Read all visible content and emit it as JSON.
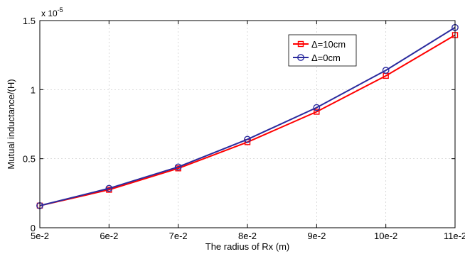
{
  "chart_data": {
    "type": "line",
    "title": "",
    "xlabel": "The radius of Rx (m)",
    "ylabel": "Mutual inductance/(H)",
    "y_multiplier": {
      "base": "x 10",
      "exponent": "-5"
    },
    "x": [
      0.05,
      0.06,
      0.07,
      0.08,
      0.09,
      0.1,
      0.11
    ],
    "x_tick_labels": [
      "5e-2",
      "6e-2",
      "7e-2",
      "8e-2",
      "9e-2",
      "10e-2",
      "11e-2"
    ],
    "y_ticks": [
      0,
      0.5,
      1,
      1.5
    ],
    "y_tick_labels": [
      "0",
      "0.5",
      "1",
      "1.5"
    ],
    "ylim": [
      0,
      1.5
    ],
    "xlim": [
      0.05,
      0.11
    ],
    "grid": true,
    "legend_position": "top-right",
    "series": [
      {
        "name": "Δ=10cm",
        "color": "#ff0000",
        "marker": "square",
        "values": [
          0.16,
          0.275,
          0.43,
          0.62,
          0.84,
          1.1,
          1.395
        ]
      },
      {
        "name": "Δ=0cm",
        "color": "#2b2b9e",
        "marker": "circle",
        "values": [
          0.16,
          0.285,
          0.44,
          0.64,
          0.87,
          1.14,
          1.45
        ]
      }
    ]
  }
}
